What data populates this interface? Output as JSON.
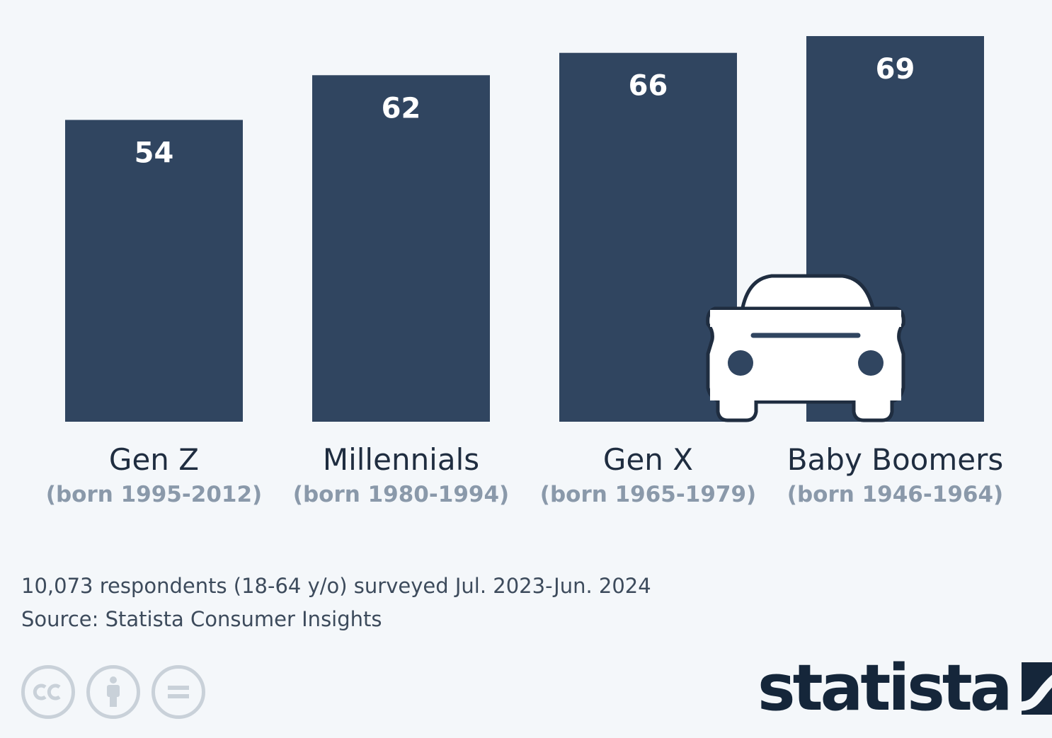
{
  "chart_data": {
    "type": "bar",
    "categories": [
      "Gen Z",
      "Millennials",
      "Gen X",
      "Baby Boomers"
    ],
    "category_sublabels": [
      "(born 1995-2012)",
      "(born 1980-1994)",
      "(born 1965-1979)",
      "(born 1946-1964)"
    ],
    "values": [
      54,
      62,
      66,
      69
    ],
    "value_labels": [
      "54",
      "62",
      "66",
      "69"
    ],
    "ylim": [
      0,
      69
    ],
    "grid": false,
    "bar_color": "#304560",
    "label_color": "#ffffff",
    "decoration_icon": "car-icon"
  },
  "notes": {
    "survey": "10,073 respondents (18-64 y/o) surveyed Jul. 2023-Jun. 2024",
    "source": "Source: Statista Consumer Insights"
  },
  "footer": {
    "license_icons": [
      "cc-icon",
      "attribution-icon",
      "no-derivatives-icon"
    ],
    "brand": "statista",
    "brand_color": "#15263a"
  }
}
